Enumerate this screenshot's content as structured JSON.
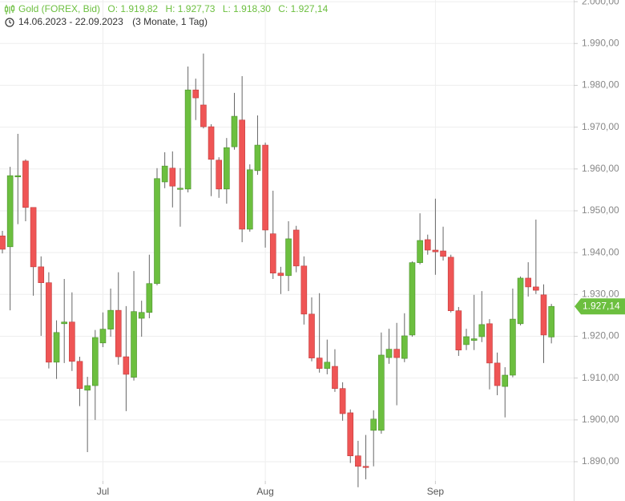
{
  "chart_data": {
    "type": "candlestick",
    "title": "Gold (FOREX, Bid)",
    "ohlc_labels": [
      "O: 1.919,82",
      "H: 1.927,73",
      "L: 1.918,30",
      "C: 1.927,14"
    ],
    "date_range": "14.06.2023 - 22.09.2023",
    "period": "(3 Monate, 1 Tag)",
    "last_price_label": "1.927,14",
    "up_color": "#6cbf3f",
    "down_color": "#ef5555",
    "grid": true,
    "ylim": [
      1885.4,
      2000.4
    ],
    "yticks": [
      {
        "value": 2000,
        "label": "2.000,00"
      },
      {
        "value": 1990,
        "label": "1.990,00"
      },
      {
        "value": 1980,
        "label": "1.980,00"
      },
      {
        "value": 1970,
        "label": "1.970,00"
      },
      {
        "value": 1960,
        "label": "1.960,00"
      },
      {
        "value": 1950,
        "label": "1.950,00"
      },
      {
        "value": 1940,
        "label": "1.940,00"
      },
      {
        "value": 1930,
        "label": "1.930,00"
      },
      {
        "value": 1920,
        "label": "1.920,00"
      },
      {
        "value": 1910,
        "label": "1.910,00"
      },
      {
        "value": 1900,
        "label": "1.900,00"
      },
      {
        "value": 1890,
        "label": "1.890,00"
      }
    ],
    "categories": [
      null,
      null,
      null,
      null,
      null,
      null,
      null,
      null,
      null,
      null,
      null,
      null,
      null,
      "Jul",
      null,
      null,
      null,
      null,
      null,
      null,
      null,
      null,
      null,
      null,
      null,
      null,
      null,
      null,
      null,
      null,
      null,
      null,
      null,
      null,
      "Aug",
      null,
      null,
      null,
      null,
      null,
      null,
      null,
      null,
      null,
      null,
      null,
      null,
      null,
      null,
      null,
      null,
      null,
      null,
      null,
      null,
      null,
      "Sep",
      null,
      null,
      null,
      null,
      null,
      null,
      null,
      null,
      null,
      null,
      null,
      null,
      null,
      null,
      null
    ],
    "open": [
      1944.0,
      1941.4,
      1958.1,
      1961.9,
      1950.8,
      1936.6,
      1932.8,
      1913.8,
      1923.0,
      1923.4,
      1914.0,
      1907.1,
      1908.2,
      1918.4,
      1921.7,
      1926.2,
      1915.1,
      1910.2,
      1924.3,
      1925.7,
      1932.6,
      1956.9,
      1960.2,
      1955.2,
      1955.2,
      1978.9,
      1975.3,
      1970.1,
      1962.1,
      1955.2,
      1965.3,
      1971.7,
      1945.6,
      1959.6,
      1965.7,
      1944.5,
      1935.1,
      1934.5,
      1945.4,
      1936.8,
      1925.3,
      1914.8,
      1912.3,
      1912.8,
      1907.5,
      1901.7,
      1891.4,
      1888.9,
      1897.5,
      1897.5,
      1914.9,
      1916.9,
      1914.7,
      1920.3,
      1937.6,
      1943.1,
      1940.6,
      1940.4,
      1938.9,
      1926.1,
      1918.0,
      1919.0,
      1919.9,
      1923.0,
      1913.6,
      1908.0,
      1910.7,
      1923.0,
      1933.9,
      1931.8,
      1929.9,
      1919.82
    ],
    "high": [
      1945.2,
      1960.5,
      1968.4,
      1962.3,
      1950.8,
      1939.1,
      1935.3,
      1923.8,
      1933.7,
      1930.5,
      1915.1,
      1910.3,
      1921.5,
      1925.7,
      1931.4,
      1935.3,
      1927.2,
      1935.6,
      1928.5,
      1939.5,
      1960.2,
      1964.0,
      1964.2,
      1960.2,
      1984.5,
      1981.6,
      1987.6,
      1970.7,
      1962.8,
      1967.4,
      1978.2,
      1982.2,
      1961.1,
      1972.8,
      1966.3,
      1954.8,
      1936.6,
      1947.5,
      1946.4,
      1939.1,
      1929.3,
      1930.3,
      1919.2,
      1916.9,
      1909.0,
      1902.5,
      1895.0,
      1896.4,
      1902.3,
      1920.9,
      1921.8,
      1923.2,
      1925.5,
      1937.9,
      1949.4,
      1944.3,
      1952.9,
      1946.2,
      1939.5,
      1927.0,
      1921.8,
      1929.9,
      1930.8,
      1924.1,
      1916.1,
      1912.6,
      1931.4,
      1934.3,
      1937.7,
      1947.9,
      1932.4,
      1927.73
    ],
    "low": [
      1939.8,
      1926.2,
      1946.8,
      1947.5,
      1929.7,
      1920.1,
      1912.3,
      1909.8,
      1913.6,
      1911.7,
      1903.3,
      1892.3,
      1900.0,
      1917.4,
      1919.9,
      1913.2,
      1902.1,
      1909.4,
      1919.9,
      1924.3,
      1932.2,
      1955.4,
      1950.8,
      1946.2,
      1954.4,
      1971.7,
      1969.7,
      1953.5,
      1953.1,
      1951.7,
      1964.6,
      1942.5,
      1945.0,
      1958.6,
      1941.2,
      1933.7,
      1930.1,
      1930.8,
      1935.3,
      1922.8,
      1914.0,
      1911.3,
      1910.9,
      1906.7,
      1899.8,
      1889.7,
      1883.9,
      1885.8,
      1888.9,
      1896.7,
      1913.4,
      1903.5,
      1913.8,
      1919.9,
      1937.2,
      1939.5,
      1934.7,
      1938.1,
      1925.7,
      1915.3,
      1916.7,
      1916.7,
      1918.6,
      1907.3,
      1905.9,
      1900.6,
      1910.2,
      1922.6,
      1929.5,
      1930.1,
      1913.6,
      1918.3
    ],
    "close": [
      1940.8,
      1958.4,
      1958.4,
      1950.8,
      1936.6,
      1932.8,
      1913.8,
      1920.9,
      1923.4,
      1914.0,
      1907.5,
      1908.2,
      1919.7,
      1921.7,
      1926.2,
      1915.1,
      1910.9,
      1925.9,
      1925.7,
      1932.6,
      1957.7,
      1960.7,
      1955.9,
      1955.4,
      1978.9,
      1977.0,
      1970.1,
      1962.3,
      1955.2,
      1965.1,
      1972.6,
      1945.6,
      1959.8,
      1965.7,
      1945.4,
      1935.1,
      1934.5,
      1943.3,
      1936.8,
      1925.3,
      1914.8,
      1912.3,
      1913.8,
      1907.5,
      1901.5,
      1891.4,
      1888.9,
      1888.7,
      1900.2,
      1915.5,
      1916.9,
      1914.9,
      1920.1,
      1937.6,
      1942.9,
      1940.6,
      1940.2,
      1939.1,
      1926.1,
      1916.7,
      1919.9,
      1919.4,
      1922.8,
      1913.6,
      1908.2,
      1910.7,
      1924.1,
      1933.9,
      1931.8,
      1931.0,
      1920.3,
      1927.14
    ]
  }
}
